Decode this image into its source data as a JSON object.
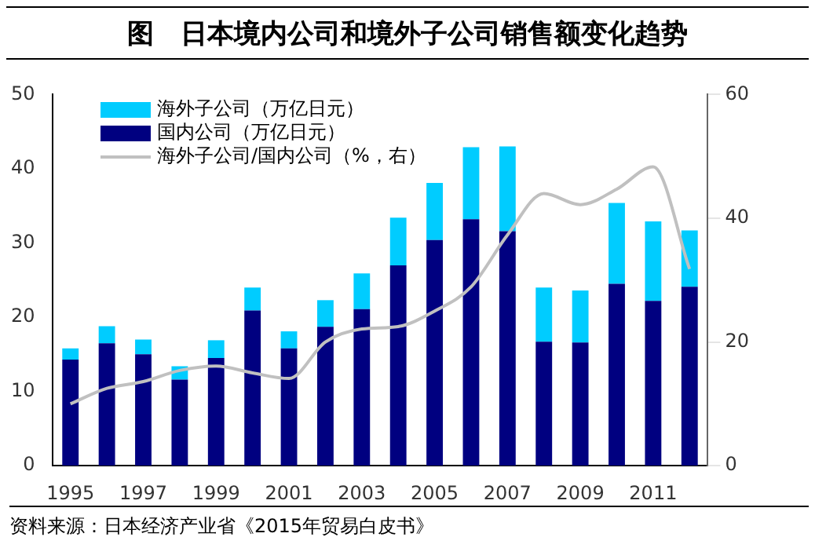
{
  "chart_data": {
    "type": "bar",
    "title": "图　日本境内公司和境外子公司销售额变化趋势",
    "categories": [
      "1995",
      null,
      "1997",
      null,
      "1999",
      null,
      "2001",
      null,
      "2003",
      null,
      "2005",
      null,
      "2007",
      null,
      "2009",
      null,
      "2011",
      null
    ],
    "stacked": true,
    "series": [
      {
        "name": "国内公司（万亿日元）",
        "color": "#000080",
        "values": [
          14.3,
          16.5,
          15.0,
          11.6,
          14.5,
          20.9,
          15.8,
          18.7,
          21.1,
          27.0,
          30.4,
          33.2,
          31.6,
          16.7,
          16.6,
          24.5,
          22.2,
          24.1
        ]
      },
      {
        "name": "海外子公司（万亿日元）",
        "color": "#00ccff",
        "values": [
          1.5,
          2.3,
          2.0,
          1.8,
          2.4,
          3.1,
          2.3,
          3.6,
          4.8,
          6.4,
          7.7,
          9.7,
          11.4,
          7.3,
          7.0,
          10.9,
          10.7,
          7.6
        ]
      },
      {
        "name": "海外子公司/国内公司（%，右）",
        "type": "line",
        "axis": "y2",
        "color": "#c0c0c0",
        "marker": "none",
        "values": [
          10.0,
          12.5,
          13.6,
          15.4,
          16.1,
          15.0,
          14.1,
          20.0,
          22.1,
          22.5,
          25.0,
          28.9,
          37.3,
          44.0,
          42.2,
          44.7,
          48.3,
          31.8
        ]
      }
    ],
    "ylim": [
      0,
      50
    ],
    "yticks": [
      0,
      10,
      20,
      30,
      40,
      50
    ],
    "y2lim": [
      0,
      60
    ],
    "y2ticks": [
      0,
      20,
      40,
      60
    ],
    "grid": false,
    "legend": "top left",
    "annotations": [
      "资料来源：日本经济产业省《2015年贸易白皮书》"
    ]
  }
}
